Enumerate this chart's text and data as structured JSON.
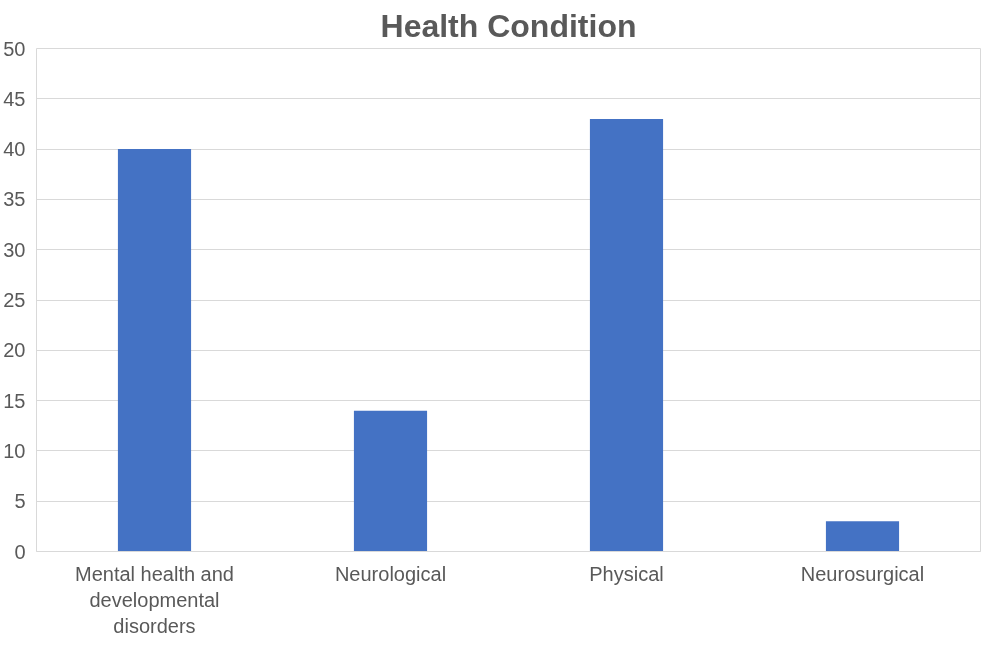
{
  "chart_data": {
    "type": "bar",
    "title": "Health Condition",
    "categories": [
      "Mental health and developmental disorders",
      "Neurological",
      "Physical",
      "Neurosurgical"
    ],
    "values": [
      40,
      14,
      43,
      3
    ],
    "color": "#4472c4",
    "ylim": [
      0,
      50
    ],
    "yticks": [
      0,
      5,
      10,
      15,
      20,
      25,
      30,
      35,
      40,
      45,
      50
    ],
    "grid": "y"
  }
}
